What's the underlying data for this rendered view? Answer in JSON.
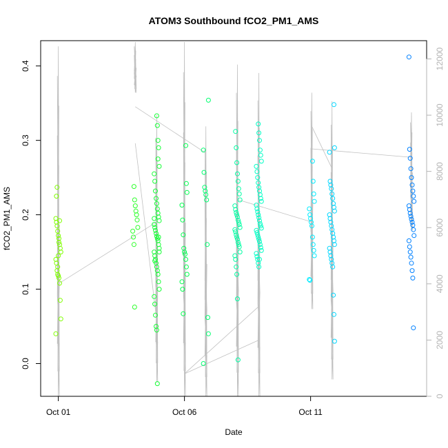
{
  "chart_data": {
    "type": "scatter",
    "title": "ATOM3 Southbound fCO2_PM1_AMS",
    "xlabel": "Date",
    "ylabel": "fCO2_PM1_AMS",
    "xlim_days": [
      -0.7,
      14.6
    ],
    "ylim": [
      -0.044,
      0.434
    ],
    "y2lim": [
      -0.9,
      12650
    ],
    "x_ticks": [
      {
        "value": 0,
        "label": "Oct 01"
      },
      {
        "value": 5,
        "label": "Oct 06"
      },
      {
        "value": 10,
        "label": "Oct 11"
      }
    ],
    "y_ticks": [
      {
        "value": 0.0,
        "label": "0.0"
      },
      {
        "value": 0.1,
        "label": "0.1"
      },
      {
        "value": 0.2,
        "label": "0.2"
      },
      {
        "value": 0.3,
        "label": "0.3"
      },
      {
        "value": 0.4,
        "label": "0.4"
      }
    ],
    "y2_ticks": [
      {
        "value": 0,
        "label": "0"
      },
      {
        "value": 2000,
        "label": "2000"
      },
      {
        "value": 4000,
        "label": "4000"
      },
      {
        "value": 6000,
        "label": "6000"
      },
      {
        "value": 8000,
        "label": "8000"
      },
      {
        "value": 10000,
        "label": "10000"
      },
      {
        "value": 12000,
        "label": "12000"
      }
    ],
    "point_color_ramp": [
      "#7fff00",
      "#00ff40",
      "#00ffff",
      "#0080ff"
    ],
    "altitude_line_color": "#c0c0c0",
    "series": [
      {
        "x": 0.0,
        "values": [
          0.195,
          0.19,
          0.185,
          0.178,
          0.172,
          0.168,
          0.16,
          0.155,
          0.15,
          0.14,
          0.135,
          0.125,
          0.12,
          0.118,
          0.115,
          0.108,
          0.085,
          0.06,
          0.04,
          0.225,
          0.237,
          0.13,
          0.145,
          0.163,
          0.192
        ]
      },
      {
        "x": 3.05,
        "values": [
          0.238,
          0.22,
          0.212,
          0.205,
          0.2,
          0.193,
          0.183,
          0.178,
          0.17,
          0.16,
          0.076
        ]
      },
      {
        "x": 3.9,
        "values": [
          0.333,
          0.32,
          0.3,
          0.29,
          0.265,
          0.255,
          0.245,
          0.232,
          0.222,
          0.215,
          0.208,
          0.202,
          0.197,
          0.192,
          0.187,
          0.183,
          0.179,
          0.175,
          0.171,
          0.168,
          0.165,
          0.16,
          0.155,
          0.15,
          0.145,
          0.14,
          0.135,
          0.13,
          0.125,
          0.12,
          0.11,
          0.1,
          0.09,
          0.08,
          0.065,
          0.05,
          0.045,
          -0.027,
          0.275,
          0.17,
          0.15,
          0.195,
          0.138
        ]
      },
      {
        "x": 5.0,
        "values": [
          0.293,
          0.242,
          0.23,
          0.213,
          0.193,
          0.173,
          0.155,
          0.15,
          0.147,
          0.14,
          0.13,
          0.12,
          0.11,
          0.1,
          0.067
        ]
      },
      {
        "x": 5.85,
        "values": [
          0.354,
          0.287,
          0.257,
          0.237,
          0.232,
          0.227,
          0.22,
          0.16,
          0.062,
          0.04,
          0.0
        ]
      },
      {
        "x": 7.1,
        "values": [
          0.312,
          0.29,
          0.27,
          0.255,
          0.245,
          0.235,
          0.228,
          0.22,
          0.212,
          0.207,
          0.203,
          0.2,
          0.197,
          0.193,
          0.19,
          0.187,
          0.183,
          0.18,
          0.177,
          0.173,
          0.17,
          0.167,
          0.163,
          0.16,
          0.157,
          0.15,
          0.145,
          0.14,
          0.13,
          0.12,
          0.087,
          0.005
        ]
      },
      {
        "x": 7.95,
        "values": [
          0.322,
          0.31,
          0.3,
          0.287,
          0.28,
          0.272,
          0.265,
          0.258,
          0.25,
          0.243,
          0.237,
          0.232,
          0.227,
          0.222,
          0.218,
          0.213,
          0.208,
          0.204,
          0.2,
          0.196,
          0.192,
          0.188,
          0.185,
          0.182,
          0.179,
          0.176,
          0.173,
          0.17,
          0.167,
          0.164,
          0.16,
          0.156,
          0.152,
          0.148,
          0.144,
          0.14,
          0.135,
          0.13,
          0.14
        ]
      },
      {
        "x": 10.05,
        "values": [
          0.272,
          0.245,
          0.228,
          0.218,
          0.208,
          0.2,
          0.195,
          0.19,
          0.185,
          0.17,
          0.16,
          0.152,
          0.145,
          0.113,
          0.112
        ]
      },
      {
        "x": 10.85,
        "values": [
          0.348,
          0.29,
          0.284,
          0.245,
          0.24,
          0.235,
          0.228,
          0.222,
          0.215,
          0.21,
          0.205,
          0.2,
          0.195,
          0.19,
          0.185,
          0.18,
          0.175,
          0.17,
          0.165,
          0.16,
          0.155,
          0.15,
          0.145,
          0.14,
          0.135,
          0.13,
          0.092,
          0.066,
          0.03
        ]
      },
      {
        "x": 14.0,
        "values": [
          0.412,
          0.288,
          0.276,
          0.262,
          0.25,
          0.24,
          0.232,
          0.225,
          0.218,
          0.212,
          0.207,
          0.202,
          0.198,
          0.194,
          0.19,
          0.186,
          0.18,
          0.172,
          0.165,
          0.157,
          0.15,
          0.143,
          0.135,
          0.125,
          0.115,
          0.048
        ]
      }
    ]
  }
}
